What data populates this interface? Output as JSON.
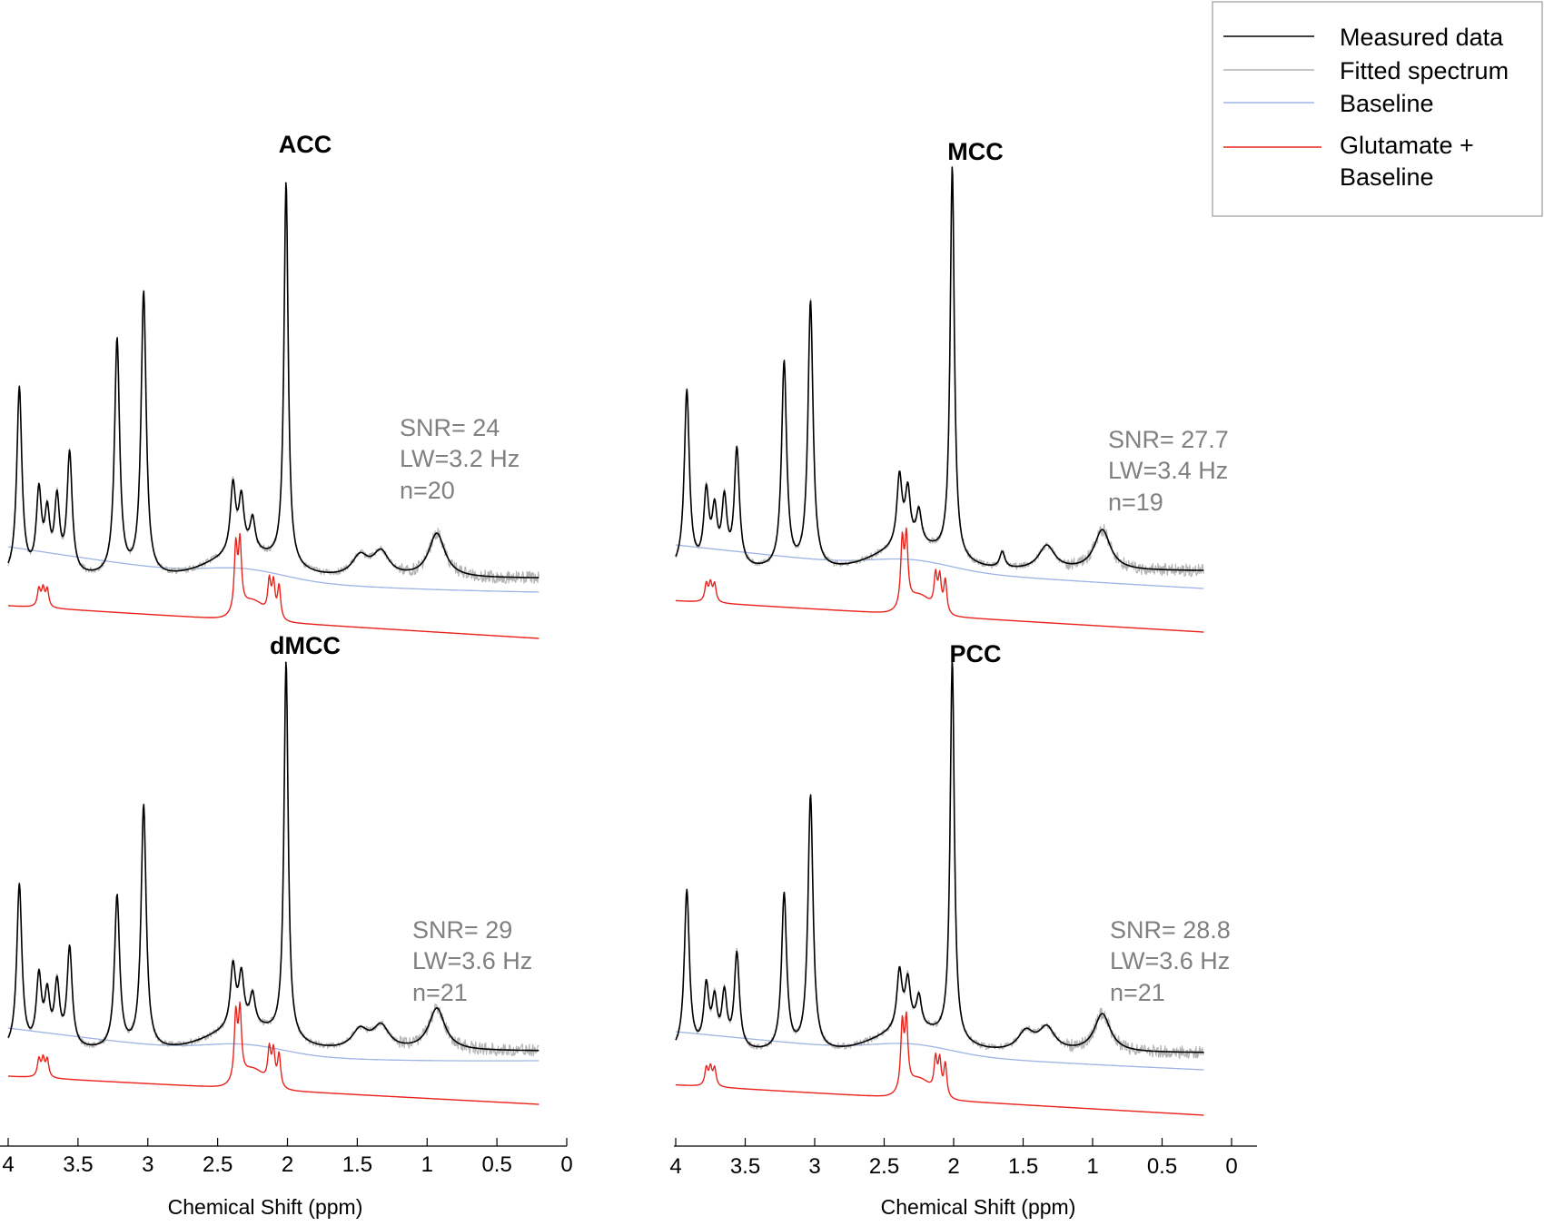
{
  "chart_data": {
    "type": "line",
    "xlabel": "Chemical Shift (ppm)",
    "x_reversed": true,
    "xlim": [
      4,
      0
    ],
    "x_ticks": [
      "4",
      "3.5",
      "3",
      "2.5",
      "2",
      "1.5",
      "1",
      "0.5",
      "0"
    ],
    "colors": {
      "measured": "#000000",
      "fitted": "#b4b4b4",
      "baseline": "#9fb4e6",
      "glutamate": "#e8231c"
    },
    "legend": {
      "position": "top-right",
      "entries": [
        {
          "key": "measured",
          "label": "Measured data"
        },
        {
          "key": "fitted",
          "label": "Fitted spectrum"
        },
        {
          "key": "baseline",
          "label": "Baseline"
        },
        {
          "key": "glutamate",
          "label_lines": [
            "Glutamate +",
            "Baseline"
          ]
        }
      ]
    },
    "panels": [
      {
        "title": "ACC",
        "stats": [
          "SNR= 24",
          "LW=3.2 Hz",
          "n=20"
        ],
        "spectrum_range_ppm": [
          4.0,
          0.2
        ],
        "peaks": [
          {
            "ppm": 3.92,
            "height": 0.47
          },
          {
            "ppm": 3.78,
            "height": 0.2
          },
          {
            "ppm": 3.72,
            "height": 0.14
          },
          {
            "ppm": 3.65,
            "height": 0.18
          },
          {
            "ppm": 3.56,
            "height": 0.3
          },
          {
            "ppm": 3.22,
            "height": 0.59
          },
          {
            "ppm": 3.03,
            "height": 0.71
          },
          {
            "ppm": 2.39,
            "height": 0.17
          },
          {
            "ppm": 2.33,
            "height": 0.13
          },
          {
            "ppm": 2.25,
            "height": 0.08
          },
          {
            "ppm": 2.01,
            "height": 0.96
          },
          {
            "ppm": 1.48,
            "height": 0.05
          },
          {
            "ppm": 1.33,
            "height": 0.06
          },
          {
            "ppm": 0.93,
            "height": 0.11
          }
        ],
        "glutamate_peaks_ppm": [
          3.78,
          3.75,
          3.72,
          2.37,
          2.34,
          2.13,
          2.1,
          2.06
        ]
      },
      {
        "title": "MCC",
        "stats": [
          "SNR= 27.7",
          "LW=3.4 Hz",
          "n=19"
        ],
        "spectrum_range_ppm": [
          4.0,
          0.2
        ],
        "peaks": [
          {
            "ppm": 3.92,
            "height": 0.44
          },
          {
            "ppm": 3.78,
            "height": 0.18
          },
          {
            "ppm": 3.72,
            "height": 0.13
          },
          {
            "ppm": 3.65,
            "height": 0.16
          },
          {
            "ppm": 3.56,
            "height": 0.29
          },
          {
            "ppm": 3.22,
            "height": 0.51
          },
          {
            "ppm": 3.03,
            "height": 0.66
          },
          {
            "ppm": 2.39,
            "height": 0.17
          },
          {
            "ppm": 2.33,
            "height": 0.13
          },
          {
            "ppm": 2.25,
            "height": 0.08
          },
          {
            "ppm": 2.01,
            "height": 0.97
          },
          {
            "ppm": 1.65,
            "height": 0.04
          },
          {
            "ppm": 1.33,
            "height": 0.06
          },
          {
            "ppm": 0.93,
            "height": 0.1
          }
        ],
        "glutamate_peaks_ppm": [
          3.78,
          3.75,
          3.72,
          2.37,
          2.34,
          2.13,
          2.1,
          2.06
        ]
      },
      {
        "title": "dMCC",
        "stats": [
          "SNR= 29",
          "LW=3.6 Hz",
          "n=21"
        ],
        "spectrum_range_ppm": [
          4.0,
          0.2
        ],
        "peaks": [
          {
            "ppm": 3.92,
            "height": 0.43
          },
          {
            "ppm": 3.78,
            "height": 0.18
          },
          {
            "ppm": 3.72,
            "height": 0.13
          },
          {
            "ppm": 3.65,
            "height": 0.16
          },
          {
            "ppm": 3.56,
            "height": 0.26
          },
          {
            "ppm": 3.22,
            "height": 0.4
          },
          {
            "ppm": 3.03,
            "height": 0.64
          },
          {
            "ppm": 2.39,
            "height": 0.16
          },
          {
            "ppm": 2.33,
            "height": 0.13
          },
          {
            "ppm": 2.25,
            "height": 0.08
          },
          {
            "ppm": 2.01,
            "height": 0.99
          },
          {
            "ppm": 1.48,
            "height": 0.05
          },
          {
            "ppm": 1.33,
            "height": 0.06
          },
          {
            "ppm": 0.93,
            "height": 0.11
          }
        ],
        "glutamate_peaks_ppm": [
          3.78,
          3.75,
          3.72,
          2.37,
          2.34,
          2.13,
          2.1,
          2.06
        ]
      },
      {
        "title": "PCC",
        "stats": [
          "SNR= 28.8",
          "LW=3.6 Hz",
          "n=21"
        ],
        "spectrum_range_ppm": [
          4.0,
          0.2
        ],
        "peaks": [
          {
            "ppm": 3.92,
            "height": 0.42
          },
          {
            "ppm": 3.78,
            "height": 0.16
          },
          {
            "ppm": 3.72,
            "height": 0.12
          },
          {
            "ppm": 3.65,
            "height": 0.14
          },
          {
            "ppm": 3.56,
            "height": 0.25
          },
          {
            "ppm": 3.22,
            "height": 0.41
          },
          {
            "ppm": 3.03,
            "height": 0.67
          },
          {
            "ppm": 2.39,
            "height": 0.15
          },
          {
            "ppm": 2.33,
            "height": 0.12
          },
          {
            "ppm": 2.25,
            "height": 0.08
          },
          {
            "ppm": 2.01,
            "height": 1.0
          },
          {
            "ppm": 1.48,
            "height": 0.05
          },
          {
            "ppm": 1.33,
            "height": 0.06
          },
          {
            "ppm": 0.93,
            "height": 0.1
          }
        ],
        "glutamate_peaks_ppm": [
          3.78,
          3.75,
          3.72,
          2.37,
          2.34,
          2.13,
          2.1,
          2.06
        ]
      }
    ]
  }
}
